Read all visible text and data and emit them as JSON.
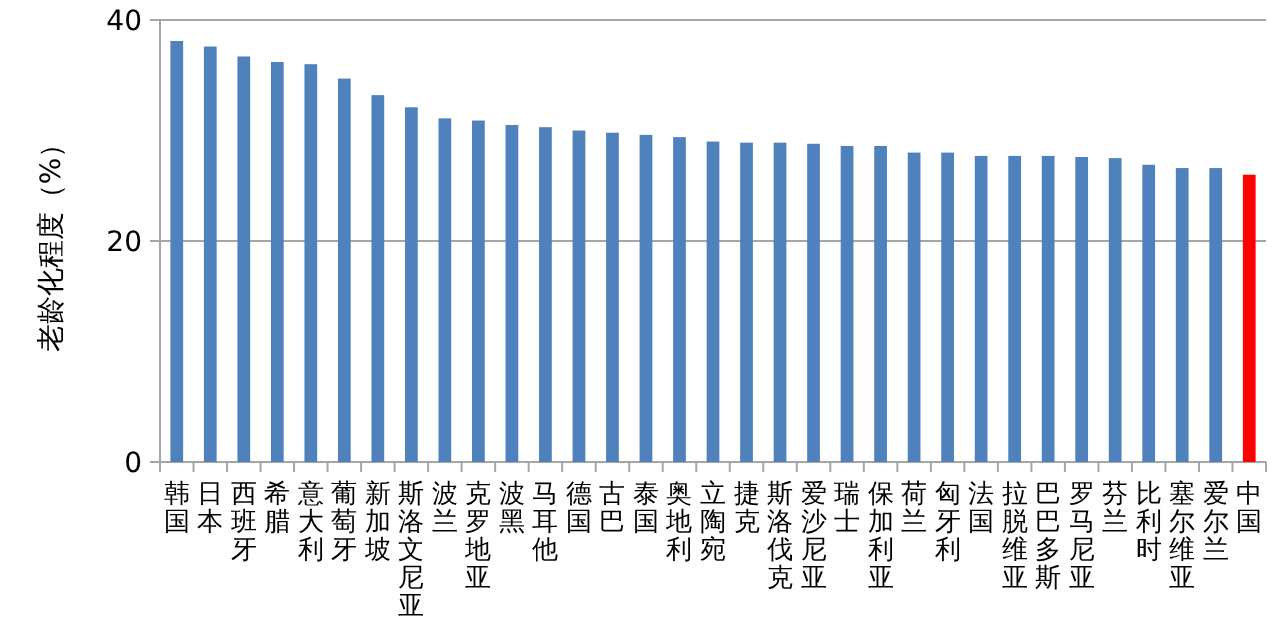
{
  "chart_data": {
    "type": "bar",
    "ylabel": "老龄化程度（%）",
    "categories": [
      "韩国",
      "日本",
      "西班牙",
      "希腊",
      "意大利",
      "葡萄牙",
      "新加坡",
      "斯洛文尼亚",
      "波兰",
      "克罗地亚",
      "波黑",
      "马耳他",
      "德国",
      "古巴",
      "泰国",
      "奥地利",
      "立陶宛",
      "捷克",
      "斯洛伐克",
      "爱沙尼亚",
      "瑞士",
      "保加利亚",
      "荷兰",
      "匈牙利",
      "法国",
      "拉脱维亚",
      "巴巴多斯",
      "罗马尼亚",
      "芬兰",
      "比利时",
      "塞尔维亚",
      "爱尔兰",
      "中国"
    ],
    "values": [
      38.1,
      37.6,
      36.7,
      36.2,
      36.0,
      34.7,
      33.2,
      32.1,
      31.1,
      30.9,
      30.5,
      30.3,
      30.0,
      29.8,
      29.6,
      29.4,
      29.0,
      28.9,
      28.9,
      28.8,
      28.6,
      28.6,
      28.0,
      28.0,
      27.7,
      27.7,
      27.7,
      27.6,
      27.5,
      26.9,
      26.6,
      26.6,
      26.0
    ],
    "colors": [
      "#4f81bd",
      "#4f81bd",
      "#4f81bd",
      "#4f81bd",
      "#4f81bd",
      "#4f81bd",
      "#4f81bd",
      "#4f81bd",
      "#4f81bd",
      "#4f81bd",
      "#4f81bd",
      "#4f81bd",
      "#4f81bd",
      "#4f81bd",
      "#4f81bd",
      "#4f81bd",
      "#4f81bd",
      "#4f81bd",
      "#4f81bd",
      "#4f81bd",
      "#4f81bd",
      "#4f81bd",
      "#4f81bd",
      "#4f81bd",
      "#4f81bd",
      "#4f81bd",
      "#4f81bd",
      "#4f81bd",
      "#4f81bd",
      "#4f81bd",
      "#4f81bd",
      "#4f81bd",
      "#ff0000"
    ],
    "ylim": [
      0,
      40
    ],
    "yticks": [
      0,
      20,
      40
    ],
    "grid": "y"
  }
}
